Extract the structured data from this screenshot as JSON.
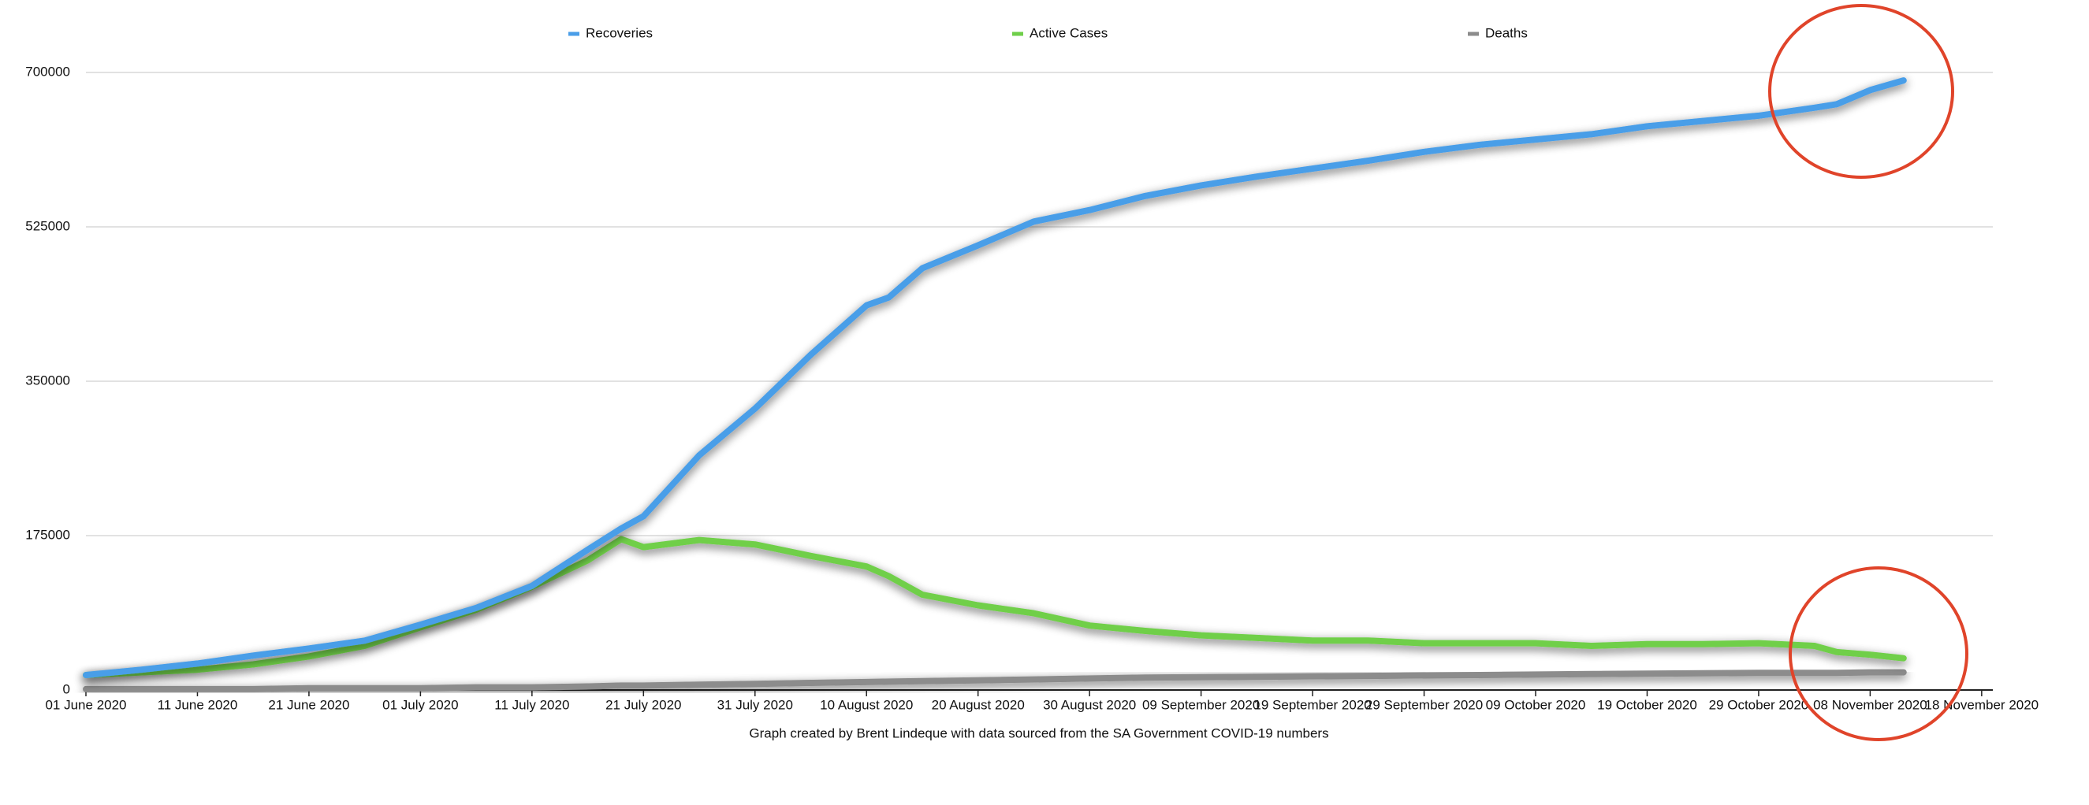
{
  "chart_data": {
    "type": "line",
    "note": "Graph created by Brent Lindeque with data sourced from the SA Government COVID-19 numbers",
    "x": [
      "2020-06-01",
      "2020-06-06",
      "2020-06-11",
      "2020-06-16",
      "2020-06-21",
      "2020-06-26",
      "2020-07-01",
      "2020-07-06",
      "2020-07-11",
      "2020-07-16",
      "2020-07-19",
      "2020-07-21",
      "2020-07-26",
      "2020-07-31",
      "2020-08-05",
      "2020-08-10",
      "2020-08-12",
      "2020-08-15",
      "2020-08-20",
      "2020-08-25",
      "2020-08-30",
      "2020-09-04",
      "2020-09-09",
      "2020-09-14",
      "2020-09-19",
      "2020-09-24",
      "2020-09-29",
      "2020-10-04",
      "2020-10-09",
      "2020-10-14",
      "2020-10-19",
      "2020-10-24",
      "2020-10-29",
      "2020-11-03",
      "2020-11-05",
      "2020-11-08",
      "2020-11-11"
    ],
    "series": [
      {
        "name": "Recoveries",
        "color": "#4a9ee8",
        "values": [
          17000,
          23000,
          30000,
          39000,
          47000,
          56000,
          74000,
          93000,
          118000,
          159000,
          183000,
          197000,
          266000,
          319000,
          380000,
          436000,
          445000,
          478000,
          504000,
          531000,
          544000,
          560000,
          572000,
          582000,
          591000,
          600000,
          610000,
          618000,
          624000,
          630000,
          639000,
          645000,
          651000,
          660000,
          664000,
          680000,
          691000
        ]
      },
      {
        "name": "Active Cases",
        "color": "#6fcf4a",
        "values": [
          17000,
          20000,
          23000,
          29000,
          38000,
          50000,
          71000,
          91000,
          117000,
          147000,
          171000,
          162000,
          170000,
          165000,
          152000,
          140000,
          129000,
          108000,
          96000,
          87000,
          73000,
          67000,
          62000,
          59000,
          56000,
          56000,
          53000,
          53000,
          53000,
          50000,
          52000,
          52000,
          53000,
          50000,
          43000,
          40000,
          36000
        ]
      },
      {
        "name": "Deaths",
        "color": "#8c8c8c",
        "values": [
          1000,
          1000,
          1000,
          1000,
          2000,
          2000,
          2000,
          3000,
          3000,
          4000,
          5000,
          5000,
          6000,
          7000,
          8000,
          9000,
          9500,
          10000,
          11000,
          12000,
          13000,
          14000,
          14500,
          15000,
          15500,
          16000,
          16500,
          17000,
          17500,
          18000,
          18500,
          19000,
          19500,
          19500,
          19500,
          20000,
          20000
        ]
      }
    ],
    "xlim": [
      "2020-06-01",
      "2020-11-19"
    ],
    "xticks": [
      {
        "value": "2020-06-01",
        "label": "01 June 2020"
      },
      {
        "value": "2020-06-11",
        "label": "11 June 2020"
      },
      {
        "value": "2020-06-21",
        "label": "21 June 2020"
      },
      {
        "value": "2020-07-01",
        "label": "01 July 2020"
      },
      {
        "value": "2020-07-11",
        "label": "11 July 2020"
      },
      {
        "value": "2020-07-21",
        "label": "21 July 2020"
      },
      {
        "value": "2020-07-31",
        "label": "31 July 2020"
      },
      {
        "value": "2020-08-10",
        "label": "10 August 2020"
      },
      {
        "value": "2020-08-20",
        "label": "20 August 2020"
      },
      {
        "value": "2020-08-30",
        "label": "30 August 2020"
      },
      {
        "value": "2020-09-09",
        "label": "09 September 2020"
      },
      {
        "value": "2020-09-19",
        "label": "19 September 2020"
      },
      {
        "value": "2020-09-29",
        "label": "29 September 2020"
      },
      {
        "value": "2020-10-09",
        "label": "09 October 2020"
      },
      {
        "value": "2020-10-19",
        "label": "19 October 2020"
      },
      {
        "value": "2020-10-29",
        "label": "29 October 2020"
      },
      {
        "value": "2020-11-08",
        "label": "08 November 2020"
      },
      {
        "value": "2020-11-18",
        "label": "18 November 2020"
      }
    ],
    "ylim": [
      0,
      700000
    ],
    "yticks": [
      0,
      175000,
      350000,
      525000,
      700000
    ],
    "grid": true,
    "legend": "top"
  }
}
